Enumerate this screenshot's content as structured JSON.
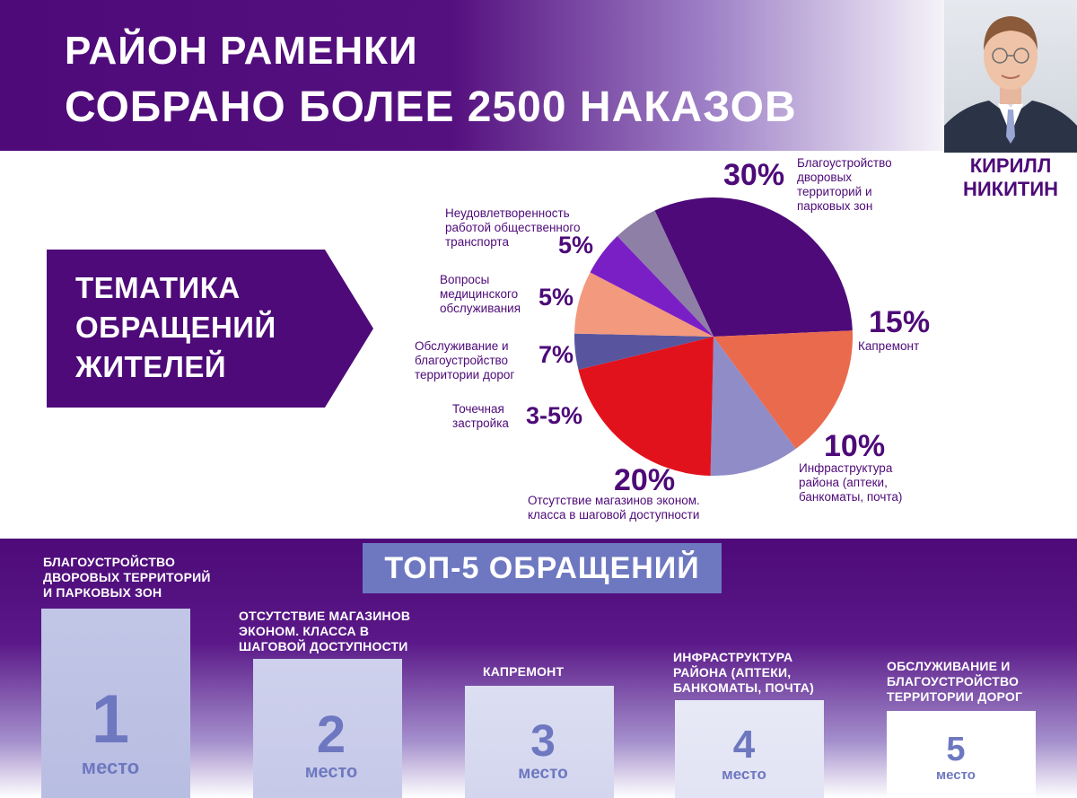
{
  "header": {
    "title_line1": "РАЙОН РАМЕНКИ",
    "title_line2": "СОБРАНО БОЛЕЕ 2500 НАКАЗОВ"
  },
  "person": {
    "name_line1": "КИРИЛЛ",
    "name_line2": "НИКИТИН"
  },
  "theme": {
    "line1": "ТЕМАТИКА",
    "line2": "ОБРАЩЕНИЙ",
    "line3": "ЖИТЕЛЕЙ"
  },
  "chart_data": {
    "type": "pie",
    "title": "",
    "slices": [
      {
        "label": "Благоустройство дворовых территорий и парковых зон",
        "value_label": "30%",
        "value": 30,
        "color": "#4d0a78"
      },
      {
        "label": "Капремонт",
        "value_label": "15%",
        "value": 15,
        "color": "#ea6a4e"
      },
      {
        "label": "Инфраструктура района (аптеки, банкоматы, почта)",
        "value_label": "10%",
        "value": 10,
        "color": "#8f8cc8"
      },
      {
        "label": "Отсутствие магазинов эконом. класса в шаговой доступности",
        "value_label": "20%",
        "value": 20,
        "color": "#e2121c"
      },
      {
        "label": "Точечная застройка",
        "value_label": "3-5%",
        "value": 4,
        "color": "#58559e"
      },
      {
        "label": "Обслуживание и благоустройство территории дорог",
        "value_label": "7%",
        "value": 7,
        "color": "#f3997d"
      },
      {
        "label": "Вопросы медицинского обслуживания",
        "value_label": "5%",
        "value": 5,
        "color": "#7a1fc6"
      },
      {
        "label": "Неудовлетворенность работой общественного транспорта",
        "value_label": "5%",
        "value": 5,
        "color": "#8e7fa6"
      }
    ],
    "label_lines": {
      "s0": [
        "Благоустройство",
        "дворовых",
        "территорий и",
        "парковых зон"
      ],
      "s1": [
        "Капремонт"
      ],
      "s2": [
        "Инфраструктура",
        "района (аптеки,",
        "банкоматы, почта)"
      ],
      "s3": [
        "Отсутствие магазинов эконом.",
        "класса в шаговой доступности"
      ],
      "s4": [
        "Точечная",
        "застройка"
      ],
      "s5": [
        "Обслуживание и",
        "благоустройство",
        "территории дорог"
      ],
      "s6": [
        "Вопросы",
        "медицинского",
        "обслуживания"
      ],
      "s7": [
        "Неудовлетворенность",
        "работой общественного",
        "транспорта"
      ]
    }
  },
  "top5": {
    "title": "ТОП-5 ОБРАЩЕНИЙ",
    "place_word": "место",
    "items": [
      {
        "rank": "1",
        "title_lines": [
          "БЛАГОУСТРОЙСТВО",
          "ДВОРОВЫХ ТЕРРИТОРИЙ",
          "И ПАРКОВЫХ ЗОН"
        ]
      },
      {
        "rank": "2",
        "title_lines": [
          "ОТСУТСТВИЕ МАГАЗИНОВ",
          "ЭКОНОМ. КЛАССА В",
          "ШАГОВОЙ ДОСТУПНОСТИ"
        ]
      },
      {
        "rank": "3",
        "title_lines": [
          "КАПРЕМОНТ"
        ]
      },
      {
        "rank": "4",
        "title_lines": [
          "ИНФРАСТРУКТУРА",
          "РАЙОНА (АПТЕКИ,",
          "БАНКОМАТЫ, ПОЧТА)"
        ]
      },
      {
        "rank": "5",
        "title_lines": [
          "ОБСЛУЖИВАНИЕ И",
          "БЛАГОУСТРОЙСТВО",
          "ТЕРРИТОРИИ ДОРОГ"
        ]
      }
    ]
  }
}
